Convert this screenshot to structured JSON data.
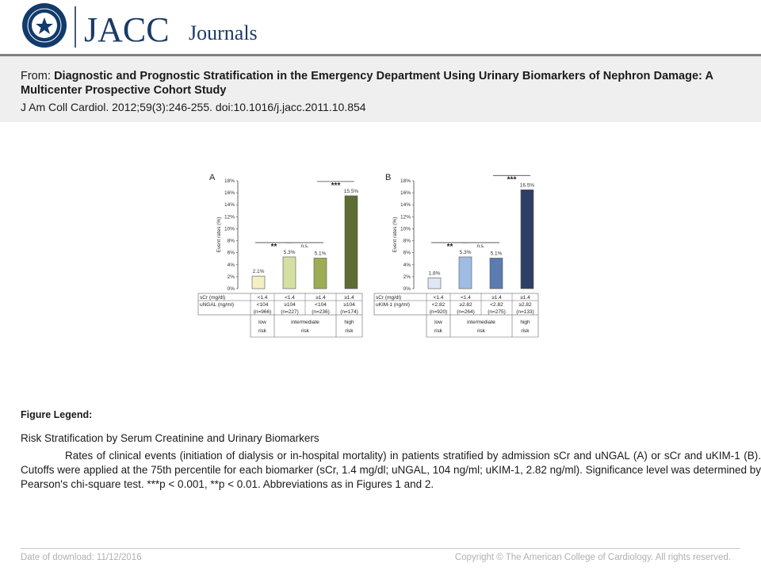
{
  "header": {
    "logo_seal_text": "AMERICAN COLLEGE of CARDIOLOGY",
    "brand": "JACC",
    "brand_suffix": "Journals"
  },
  "citation": {
    "from_label": "From:",
    "title": "Diagnostic and Prognostic Stratification in the Emergency Department Using Urinary Biomarkers of Nephron Damage: A Multicenter Prospective Cohort Study",
    "reference": "J Am Coll Cardiol. 2012;59(3):246-255. doi:10.1016/j.jacc.2011.10.854"
  },
  "chart_data": [
    {
      "panel": "A",
      "type": "bar",
      "ylabel": "Event rates (%)",
      "ylim": [
        0,
        18
      ],
      "yticks": [
        "0%",
        "2%",
        "4%",
        "6%",
        "8%",
        "10%",
        "12%",
        "14%",
        "16%",
        "18%"
      ],
      "values": [
        2.1,
        5.3,
        5.1,
        15.5
      ],
      "value_labels": [
        "2.1%",
        "5.3%",
        "5.1%",
        "15.5%"
      ],
      "colors": [
        "#f4efc4",
        "#d4dfa2",
        "#9cad55",
        "#5d6c32"
      ],
      "row_labels": [
        "sCr (mg/dl)",
        "uNGAL (ng/ml)"
      ],
      "rows": [
        [
          "<1.4",
          "<1.4",
          "≥1.4",
          "≥1.4"
        ],
        [
          "<104",
          "≥104",
          "<104",
          "≥104"
        ],
        [
          "(n=966)",
          "(n=227)",
          "(n=236)",
          "(n=174)"
        ]
      ],
      "risk_groups": [
        {
          "line1": "low",
          "line2": "risk",
          "span": 1
        },
        {
          "line1": "intermediate",
          "line2": "risk",
          "span": 2
        },
        {
          "line1": "high",
          "line2": "risk",
          "span": 1
        }
      ],
      "annotations": [
        {
          "from": 0,
          "to": 1,
          "label": "**"
        },
        {
          "from": 1,
          "to": 2,
          "label": "n.s."
        },
        {
          "from": 2,
          "to": 3,
          "label": "***"
        }
      ]
    },
    {
      "panel": "B",
      "type": "bar",
      "ylabel": "Event rates (%)",
      "ylim": [
        0,
        18
      ],
      "yticks": [
        "0%",
        "2%",
        "4%",
        "6%",
        "8%",
        "10%",
        "12%",
        "14%",
        "16%",
        "18%"
      ],
      "values": [
        1.8,
        5.3,
        5.1,
        16.5
      ],
      "value_labels": [
        "1.8%",
        "5.3%",
        "5.1%",
        "16.5%"
      ],
      "colors": [
        "#dde8f4",
        "#9fbde2",
        "#5a7cb0",
        "#2d3f66"
      ],
      "row_labels": [
        "sCr (mg/dl)",
        "uKIM-1 (ng/ml)"
      ],
      "rows": [
        [
          "<1.4",
          "<1.4",
          "≥1.4",
          "≥1.4"
        ],
        [
          "<2.82",
          "≥2.82",
          "<2.82",
          "≥2.82"
        ],
        [
          "(n=920)",
          "(n=264)",
          "(n=275)",
          "(n=133)"
        ]
      ],
      "risk_groups": [
        {
          "line1": "low",
          "line2": "risk",
          "span": 1
        },
        {
          "line1": "intermediate",
          "line2": "risk",
          "span": 2
        },
        {
          "line1": "high",
          "line2": "risk",
          "span": 1
        }
      ],
      "annotations": [
        {
          "from": 0,
          "to": 1,
          "label": "**"
        },
        {
          "from": 1,
          "to": 2,
          "label": "n.s."
        },
        {
          "from": 2,
          "to": 3,
          "label": "***"
        }
      ]
    }
  ],
  "legend": {
    "heading": "Figure Legend:",
    "title": "Risk Stratification by Serum Creatinine and Urinary Biomarkers",
    "text": "Rates of clinical events (initiation of dialysis or in-hospital mortality) in patients stratified by admission sCr and uNGAL (A) or sCr and uKIM-1 (B). Cutoffs were applied at the 75th percentile for each biomarker (sCr, 1.4 mg/dl; uNGAL, 104 ng/ml; uKIM-1, 2.82 ng/ml). Significance level was determined by Pearson's chi-square test. ***p < 0.001, **p < 0.01. Abbreviations as in Figures 1 and 2."
  },
  "footer": {
    "download": "Date of download:  11/12/2016",
    "copyright": "Copyright © The American College of Cardiology. All rights reserved."
  }
}
